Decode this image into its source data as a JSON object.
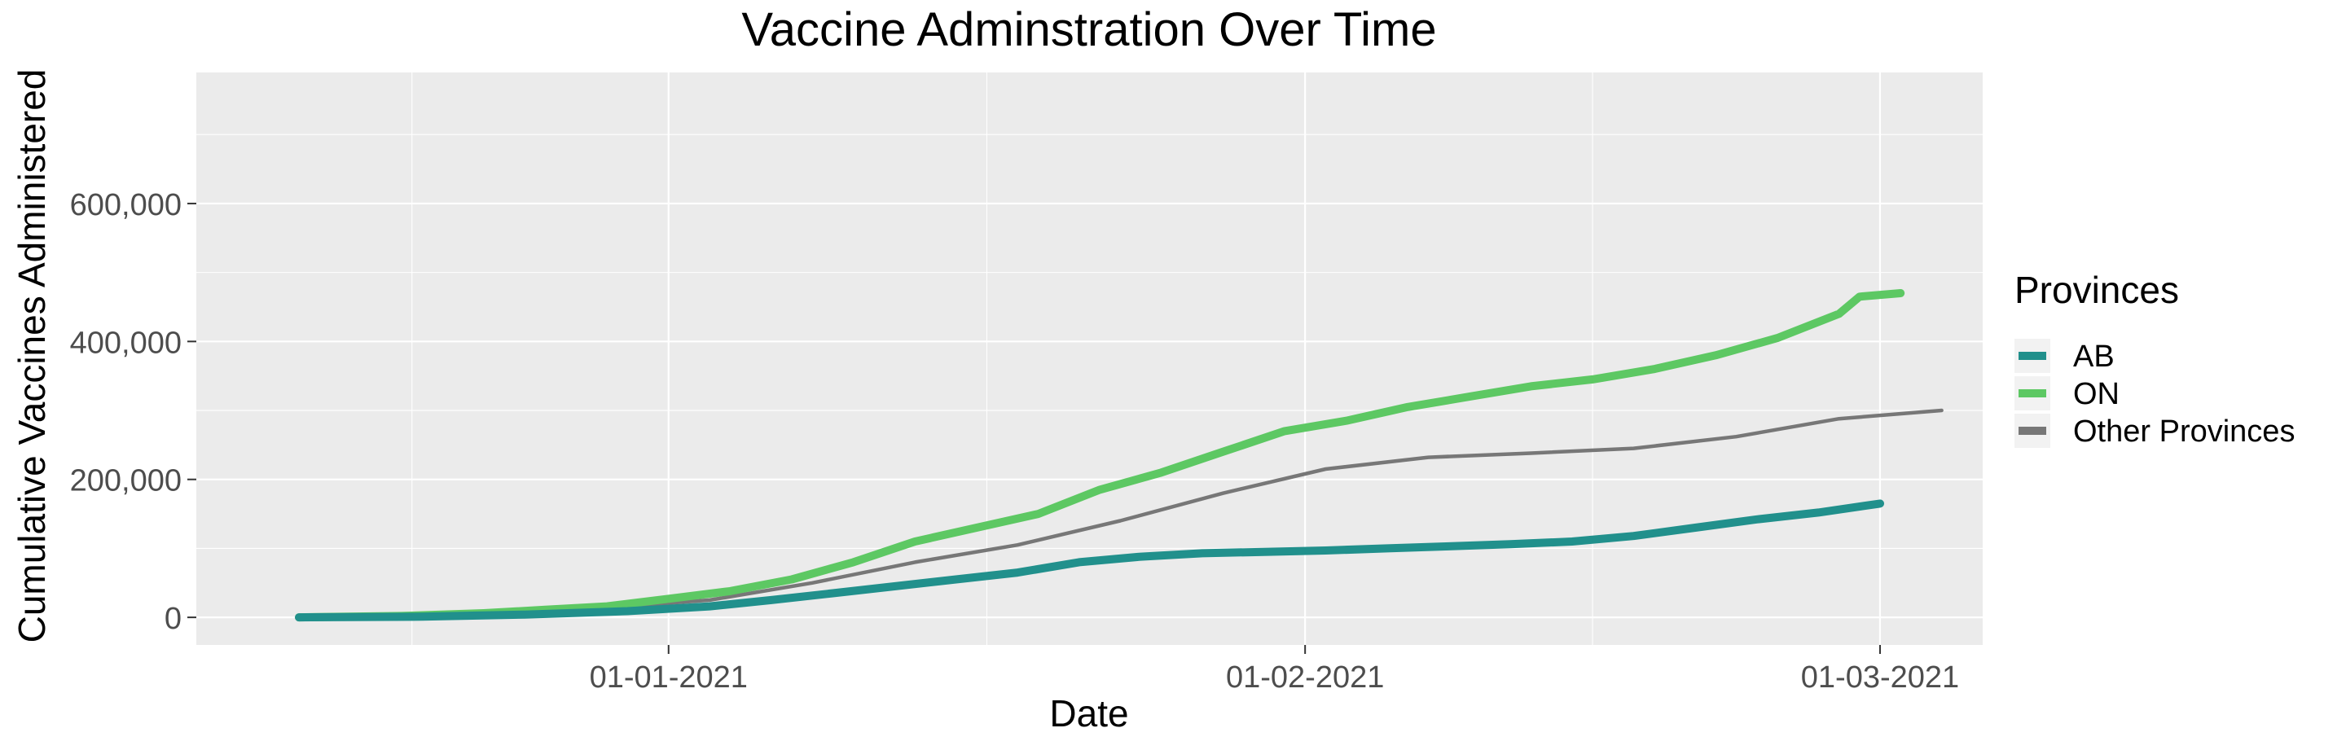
{
  "chart_data": {
    "type": "line",
    "title": "Vaccine Adminstration Over Time",
    "xlabel": "Date",
    "ylabel": "Cumulative Vaccines Administered",
    "x_ticks": [
      {
        "date": "2021-01-01",
        "label": "01-01-2021"
      },
      {
        "date": "2021-02-01",
        "label": "01-02-2021"
      },
      {
        "date": "2021-03-01",
        "label": "01-03-2021"
      }
    ],
    "y_ticks": [
      {
        "value": 0,
        "label": "0"
      },
      {
        "value": 200000,
        "label": "200,000"
      },
      {
        "value": 400000,
        "label": "400,000"
      },
      {
        "value": 600000,
        "label": "600,000"
      }
    ],
    "xlim": [
      "2020-12-09",
      "2021-03-06"
    ],
    "ylim": [
      -40000,
      790000
    ],
    "grid": true,
    "legend": {
      "title": "Provinces",
      "position": "right",
      "entries": [
        {
          "label": "AB",
          "color": "#21908C"
        },
        {
          "label": "ON",
          "color": "#5DC863"
        },
        {
          "label": "Other Provinces",
          "color": "#777777"
        }
      ]
    },
    "series": [
      {
        "name": "ON",
        "color": "#5DC863",
        "points": [
          [
            "2020-12-14",
            0
          ],
          [
            "2020-12-19",
            2000
          ],
          [
            "2020-12-23",
            6000
          ],
          [
            "2020-12-26",
            11000
          ],
          [
            "2020-12-29",
            16000
          ],
          [
            "2021-01-01",
            27000
          ],
          [
            "2021-01-04",
            38000
          ],
          [
            "2021-01-07",
            55000
          ],
          [
            "2021-01-10",
            80000
          ],
          [
            "2021-01-13",
            110000
          ],
          [
            "2021-01-16",
            130000
          ],
          [
            "2021-01-19",
            150000
          ],
          [
            "2021-01-22",
            185000
          ],
          [
            "2021-01-25",
            210000
          ],
          [
            "2021-01-28",
            240000
          ],
          [
            "2021-01-31",
            270000
          ],
          [
            "2021-02-03",
            285000
          ],
          [
            "2021-02-06",
            305000
          ],
          [
            "2021-02-09",
            320000
          ],
          [
            "2021-02-12",
            335000
          ],
          [
            "2021-02-15",
            345000
          ],
          [
            "2021-02-18",
            360000
          ],
          [
            "2021-02-21",
            380000
          ],
          [
            "2021-02-24",
            405000
          ],
          [
            "2021-02-27",
            440000
          ],
          [
            "2021-03-02",
            470000
          ],
          [
            "2021-02-28",
            465000
          ]
        ]
      },
      {
        "name": "AB",
        "color": "#21908C",
        "points": [
          [
            "2020-12-14",
            0
          ],
          [
            "2020-12-20",
            1000
          ],
          [
            "2020-12-25",
            4000
          ],
          [
            "2020-12-30",
            9000
          ],
          [
            "2021-01-03",
            16000
          ],
          [
            "2021-01-06",
            25000
          ],
          [
            "2021-01-09",
            35000
          ],
          [
            "2021-01-12",
            45000
          ],
          [
            "2021-01-15",
            55000
          ],
          [
            "2021-01-18",
            65000
          ],
          [
            "2021-01-21",
            80000
          ],
          [
            "2021-01-24",
            88000
          ],
          [
            "2021-01-27",
            93000
          ],
          [
            "2021-01-30",
            95000
          ],
          [
            "2021-02-02",
            97000
          ],
          [
            "2021-02-05",
            100000
          ],
          [
            "2021-02-08",
            103000
          ],
          [
            "2021-02-11",
            106000
          ],
          [
            "2021-02-14",
            110000
          ],
          [
            "2021-02-17",
            118000
          ],
          [
            "2021-02-20",
            130000
          ],
          [
            "2021-02-23",
            142000
          ],
          [
            "2021-02-26",
            152000
          ],
          [
            "2021-03-01",
            165000
          ]
        ]
      },
      {
        "name": "Other Provinces",
        "color": "#777777",
        "points": [
          [
            "2020-12-14",
            0
          ],
          [
            "2020-12-22",
            5000
          ],
          [
            "2020-12-28",
            12000
          ],
          [
            "2021-01-03",
            25000
          ],
          [
            "2021-01-08",
            50000
          ],
          [
            "2021-01-13",
            80000
          ],
          [
            "2021-01-18",
            105000
          ],
          [
            "2021-01-23",
            140000
          ],
          [
            "2021-01-28",
            180000
          ],
          [
            "2021-02-02",
            215000
          ],
          [
            "2021-02-07",
            232000
          ],
          [
            "2021-02-12",
            238000
          ],
          [
            "2021-02-17",
            245000
          ],
          [
            "2021-02-22",
            262000
          ],
          [
            "2021-02-27",
            288000
          ],
          [
            "2021-03-04",
            300000
          ]
        ]
      }
    ]
  }
}
